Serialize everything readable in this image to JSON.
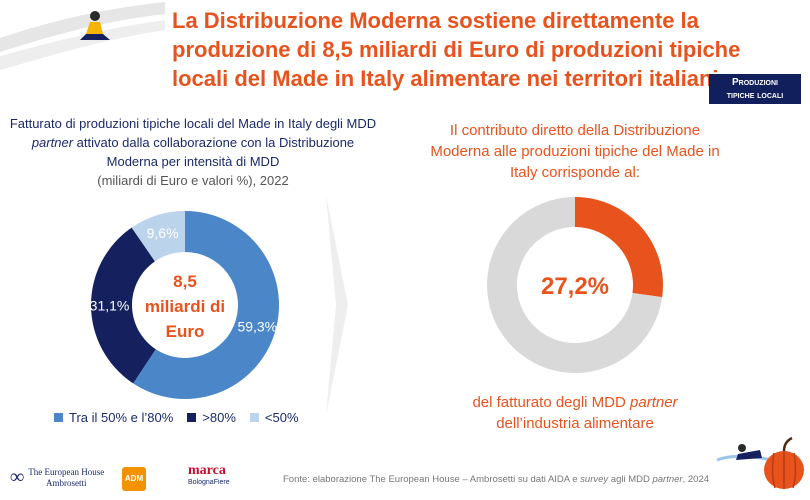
{
  "title": "La Distribuzione Moderna sostiene direttamente la produzione di 8,5 miliardi di Euro di produzioni tipiche locali del Made in Italy alimentare nei territori italiani",
  "tag": {
    "line1": "Produzioni",
    "line2": "tipiche locali"
  },
  "left_chart": {
    "heading_1": "Fatturato di produzioni tipiche locali del Made in Italy degli MDD",
    "heading_partner": "partner",
    "heading_2": "attivato dalla collaborazione con la Distribuzione Moderna per intensità di MDD",
    "subheading": "(miliardi di Euro e valori %), 2022",
    "center_line1": "8,5",
    "center_line2": "miliardi di",
    "center_line3": "Euro"
  },
  "right_chart": {
    "heading": "Il contributo diretto della Distribuzione Moderna alle produzioni tipiche del Made in Italy corrisponde al:",
    "center_label": "27,2%",
    "footer_1": "del fatturato degli MDD",
    "footer_partner": "partner",
    "footer_2": "dell’industria alimentare"
  },
  "footer": {
    "text_1": "Fonte: elaborazione The European House – Ambrosetti su dati AIDA e",
    "text_survey": "survey",
    "text_2": "agli MDD",
    "text_partner": "partner",
    "text_3": ", 2024"
  },
  "logos": {
    "teh_line1": "The European House",
    "teh_line2": "Ambrosetti",
    "adm": "ADM",
    "marca": "marca",
    "bolognafiere": "BolognaFiere"
  },
  "chart_data": [
    {
      "type": "pie",
      "donut": true,
      "categories": [
        "Tra il 50% e l’80%",
        ">80%",
        "<50%"
      ],
      "values": [
        59.3,
        31.1,
        9.6
      ],
      "labels": [
        "59,3%",
        "31,1%",
        "9,6%"
      ],
      "colors": [
        "#4a86c8",
        "#14215e",
        "#bcd3ec"
      ],
      "legend": "bottom"
    },
    {
      "type": "pie",
      "donut": true,
      "values": [
        27.2,
        72.8
      ],
      "colors": [
        "#e8531d",
        "#d9d9d9"
      ]
    }
  ],
  "colors": {
    "accent": "#e8531d",
    "navy": "#1b2a6b"
  }
}
